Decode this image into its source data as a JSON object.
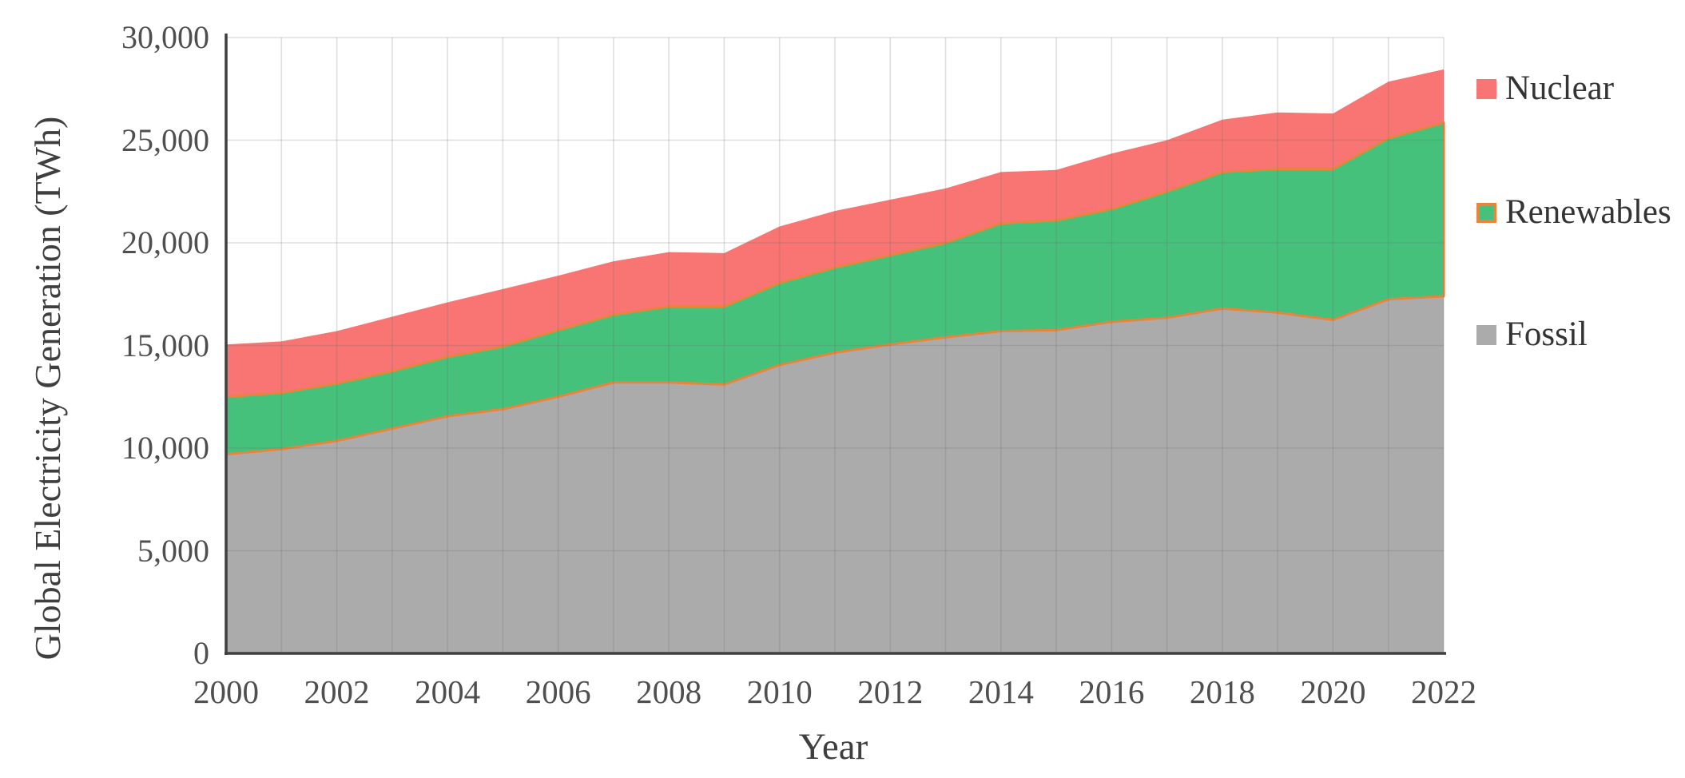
{
  "chart_data": {
    "type": "area",
    "stacked": true,
    "xlabel": "Year",
    "ylabel": "Global Electricity Generation (TWh)",
    "x": [
      2000,
      2001,
      2002,
      2003,
      2004,
      2005,
      2006,
      2007,
      2008,
      2009,
      2010,
      2011,
      2012,
      2013,
      2014,
      2015,
      2016,
      2017,
      2018,
      2019,
      2020,
      2021,
      2022
    ],
    "series": [
      {
        "name": "Fossil",
        "color": "#ababab",
        "stroke": null,
        "values": [
          9700,
          9950,
          10350,
          10950,
          11550,
          11900,
          12500,
          13200,
          13200,
          13100,
          14050,
          14650,
          15050,
          15400,
          15700,
          15750,
          16150,
          16350,
          16800,
          16600,
          16250,
          17250,
          17400
        ]
      },
      {
        "name": "Renewables",
        "color": "#45c17c",
        "stroke": "#e8843c",
        "values": [
          2800,
          2750,
          2800,
          2800,
          2900,
          3050,
          3250,
          3300,
          3700,
          3800,
          4000,
          4150,
          4350,
          4600,
          5250,
          5350,
          5500,
          6150,
          6650,
          7000,
          7350,
          7850,
          8450
        ]
      },
      {
        "name": "Nuclear",
        "color": "#f87573",
        "stroke": null,
        "values": [
          2550,
          2500,
          2550,
          2650,
          2650,
          2800,
          2650,
          2600,
          2650,
          2600,
          2750,
          2750,
          2700,
          2650,
          2500,
          2450,
          2700,
          2500,
          2550,
          2750,
          2700,
          2750,
          2600
        ]
      }
    ],
    "ylim": [
      0,
      30000
    ],
    "yticks": [
      0,
      5000,
      10000,
      15000,
      20000,
      25000,
      30000
    ],
    "ytick_labels": [
      "0",
      "5,000",
      "10,000",
      "15,000",
      "20,000",
      "25,000",
      "30,000"
    ],
    "xticks": [
      2000,
      2002,
      2004,
      2006,
      2008,
      2010,
      2012,
      2014,
      2016,
      2018,
      2020,
      2022
    ],
    "grid": "both",
    "legend_position": "right",
    "legend_order": [
      "Nuclear",
      "Renewables",
      "Fossil"
    ]
  },
  "axis": {
    "color": "#3f3f3f",
    "grid_color": "rgba(110,110,110,0.22)"
  }
}
